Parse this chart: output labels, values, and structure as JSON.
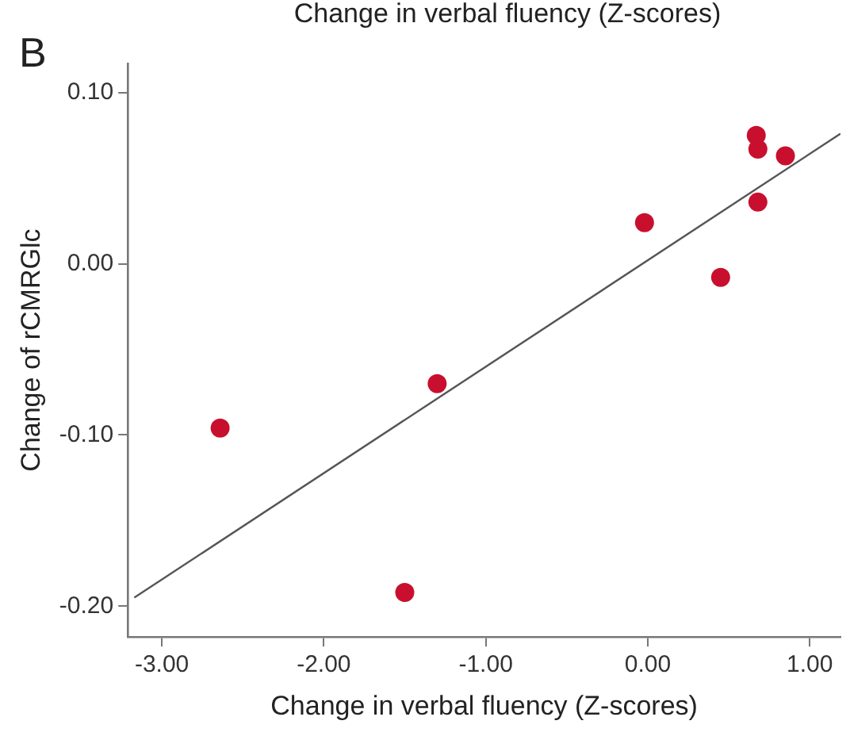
{
  "chart_data": {
    "type": "scatter",
    "xlabel": "Change in verbal fluency (Z-scores)",
    "ylabel": "Change of rCMRGlc",
    "annotations": [
      "Change in verbal fluency (Z-scores)",
      "B"
    ],
    "xlim": [
      -3.21,
      1.19
    ],
    "xticks": [
      {
        "value": -3,
        "label": "-3.00"
      },
      {
        "value": -2,
        "label": "-2.00"
      },
      {
        "value": -1,
        "label": "-1.00"
      },
      {
        "value": 0,
        "label": "0.00"
      },
      {
        "value": 1,
        "label": "1.00"
      }
    ],
    "ylim": [
      -0.218,
      0.117
    ],
    "yticks": [
      {
        "value": -0.2,
        "label": "-0.20"
      },
      {
        "value": -0.1,
        "label": "-0.10"
      },
      {
        "value": 0,
        "label": "0.00"
      },
      {
        "value": 0.1,
        "label": "0.10"
      }
    ],
    "grid": false,
    "legend": false,
    "series": [
      {
        "type": "line",
        "color": "#555555",
        "marker": "none",
        "x": [
          -3.17,
          1.19
        ],
        "values": [
          -0.195,
          0.076
        ]
      },
      {
        "type": "scatter",
        "color": "#c8102e",
        "marker": "circle",
        "x": [
          0.67,
          0.68,
          0.85,
          0.68,
          -0.02,
          0.45,
          -1.3,
          -2.64,
          -1.5
        ],
        "values": [
          0.075,
          0.067,
          0.063,
          0.036,
          0.024,
          -0.008,
          -0.07,
          -0.096,
          -0.192
        ]
      }
    ]
  }
}
